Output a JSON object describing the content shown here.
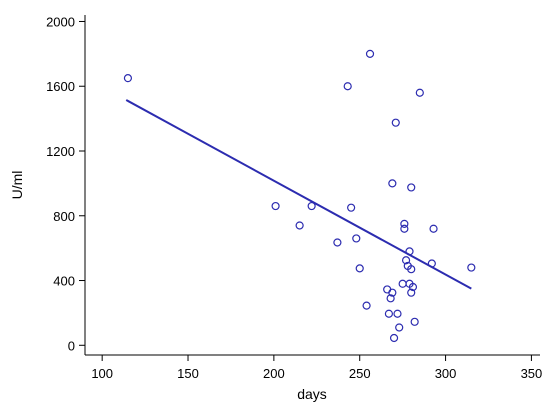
{
  "chart_data": {
    "type": "scatter",
    "title": "",
    "xlabel": "days",
    "ylabel": "U/ml",
    "xlim": [
      90,
      355
    ],
    "ylim": [
      -60,
      2040
    ],
    "xticks": [
      100,
      150,
      200,
      250,
      300,
      350
    ],
    "yticks": [
      0,
      400,
      800,
      1200,
      1600,
      2000
    ],
    "grid": false,
    "legend": "none",
    "point_color": "#2c2cb0",
    "line_color": "#2c2cb0",
    "series": [
      {
        "marker": "open-circle",
        "points": [
          [
            115,
            1650
          ],
          [
            201,
            860
          ],
          [
            215,
            740
          ],
          [
            222,
            860
          ],
          [
            237,
            635
          ],
          [
            243,
            1600
          ],
          [
            245,
            850
          ],
          [
            248,
            660
          ],
          [
            250,
            475
          ],
          [
            254,
            245
          ],
          [
            256,
            1800
          ],
          [
            266,
            345
          ],
          [
            267,
            195
          ],
          [
            268,
            290
          ],
          [
            269,
            1000
          ],
          [
            269,
            325
          ],
          [
            270,
            45
          ],
          [
            271,
            1375
          ],
          [
            272,
            195
          ],
          [
            273,
            110
          ],
          [
            275,
            380
          ],
          [
            276,
            720
          ],
          [
            276,
            750
          ],
          [
            277,
            525
          ],
          [
            278,
            490
          ],
          [
            279,
            580
          ],
          [
            279,
            380
          ],
          [
            280,
            470
          ],
          [
            280,
            325
          ],
          [
            280,
            975
          ],
          [
            281,
            360
          ],
          [
            282,
            145
          ],
          [
            285,
            1560
          ],
          [
            292,
            505
          ],
          [
            293,
            720
          ],
          [
            315,
            480
          ]
        ]
      }
    ],
    "fit_line": {
      "x": [
        114,
        315
      ],
      "y": [
        1515,
        350
      ]
    }
  }
}
